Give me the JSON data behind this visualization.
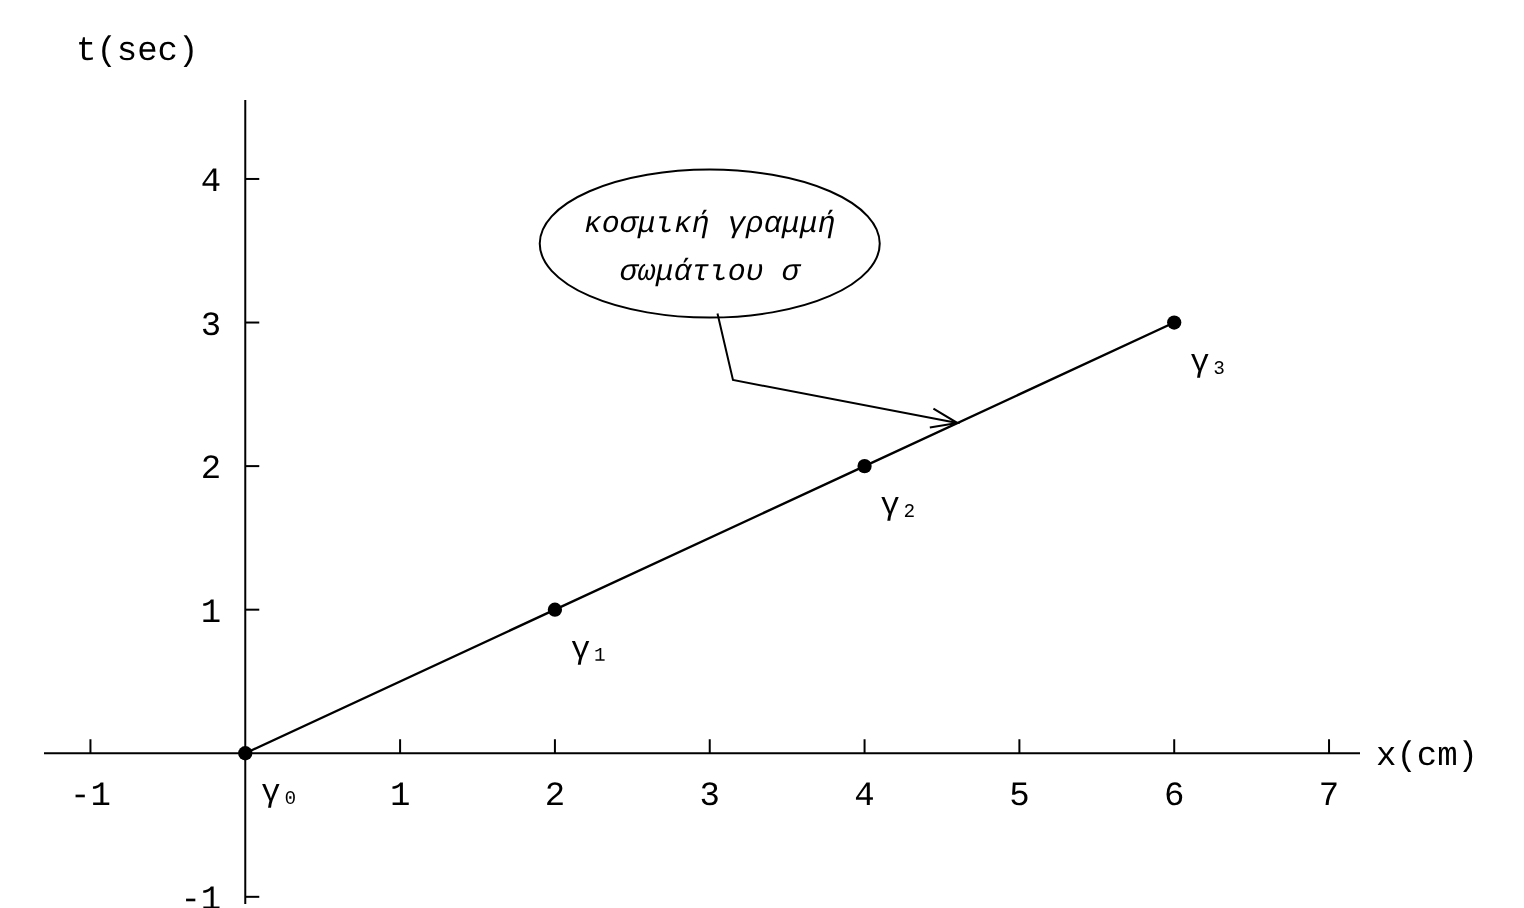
{
  "chart_data": {
    "type": "line",
    "xlabel": "x(cm)",
    "ylabel": "t(sec)",
    "x": [
      0,
      2,
      4,
      6
    ],
    "series": [
      {
        "color": "#000000",
        "values": [
          0,
          1,
          2,
          3
        ]
      }
    ],
    "marker": "circle",
    "line_style": "solid",
    "xlim": [
      -1.3,
      7.2
    ],
    "ylim": [
      -1.05,
      4.55
    ],
    "xticks": [
      -1,
      1,
      2,
      3,
      4,
      5,
      6,
      7
    ],
    "yticks": [
      -1,
      1,
      2,
      3,
      4
    ],
    "annotations": [
      {
        "text": "γ₀",
        "x": 0,
        "y": 0
      },
      {
        "text": "γ₁",
        "x": 2,
        "y": 1
      },
      {
        "text": "γ₂",
        "x": 4,
        "y": 2
      },
      {
        "text": "γ₃",
        "x": 6,
        "y": 3
      },
      {
        "text": "κοσμική γραμμή\nσωμάτιου σ",
        "x": 4.6,
        "y": 2.3
      }
    ]
  }
}
